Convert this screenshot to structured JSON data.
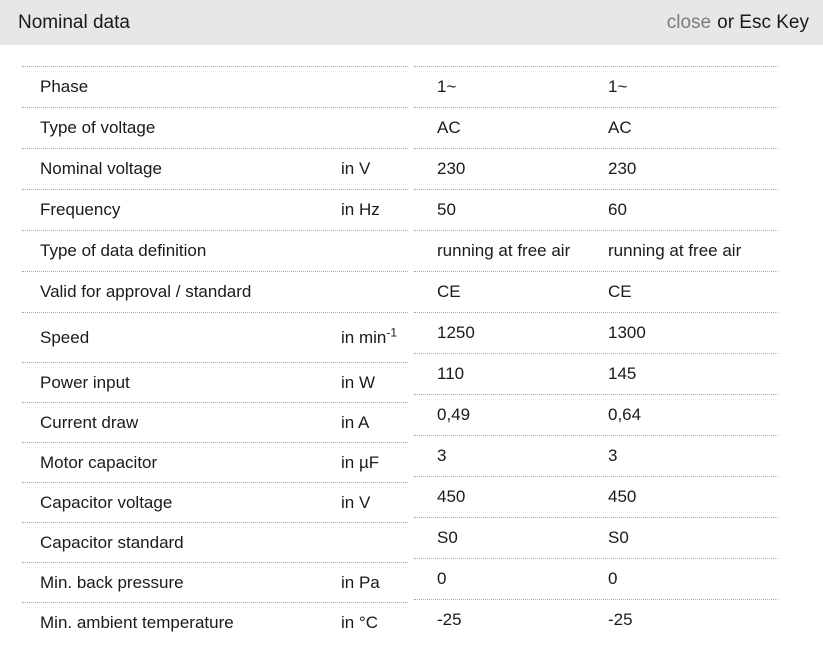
{
  "header": {
    "title": "Nominal data",
    "close_label": "close",
    "esc_hint": "or Esc Key"
  },
  "colors": {
    "header_bg": "#e7e7e7",
    "text": "#1a1a1a",
    "close_muted": "#7d7d7d",
    "row_border": "#adadad"
  },
  "table": {
    "rows": [
      {
        "label": "Phase",
        "unit": "",
        "v1": "1~",
        "v2": "1~"
      },
      {
        "label": "Type of voltage",
        "unit": "",
        "v1": "AC",
        "v2": "AC"
      },
      {
        "label": "Nominal voltage",
        "unit": "in V",
        "v1": "230",
        "v2": "230"
      },
      {
        "label": "Frequency",
        "unit": "in Hz",
        "v1": "50",
        "v2": "60"
      },
      {
        "label": "Type of data definition",
        "unit": "",
        "v1": "running at free air",
        "v2": "running at free air"
      },
      {
        "label": "Valid for approval / standard",
        "unit": "",
        "v1": "CE",
        "v2": "CE"
      },
      {
        "label": "Speed",
        "unit": "in min",
        "unit_sup": "-1",
        "v1": "1250",
        "v2": "1300"
      },
      {
        "label": "Power input",
        "unit": "in W",
        "v1": "110",
        "v2": "145"
      },
      {
        "label": "Current draw",
        "unit": "in A",
        "v1": "0,49",
        "v2": "0,64"
      },
      {
        "label": "Motor capacitor",
        "unit": "in µF",
        "v1": "3",
        "v2": "3"
      },
      {
        "label": "Capacitor voltage",
        "unit": "in V",
        "v1": "450",
        "v2": "450"
      },
      {
        "label": "Capacitor standard",
        "unit": "",
        "v1": "S0",
        "v2": "S0"
      },
      {
        "label": "Min. back pressure",
        "unit": "in Pa",
        "v1": "0",
        "v2": "0"
      },
      {
        "label": "Min. ambient temperature",
        "unit": "in °C",
        "v1": "-25",
        "v2": "-25"
      }
    ]
  }
}
